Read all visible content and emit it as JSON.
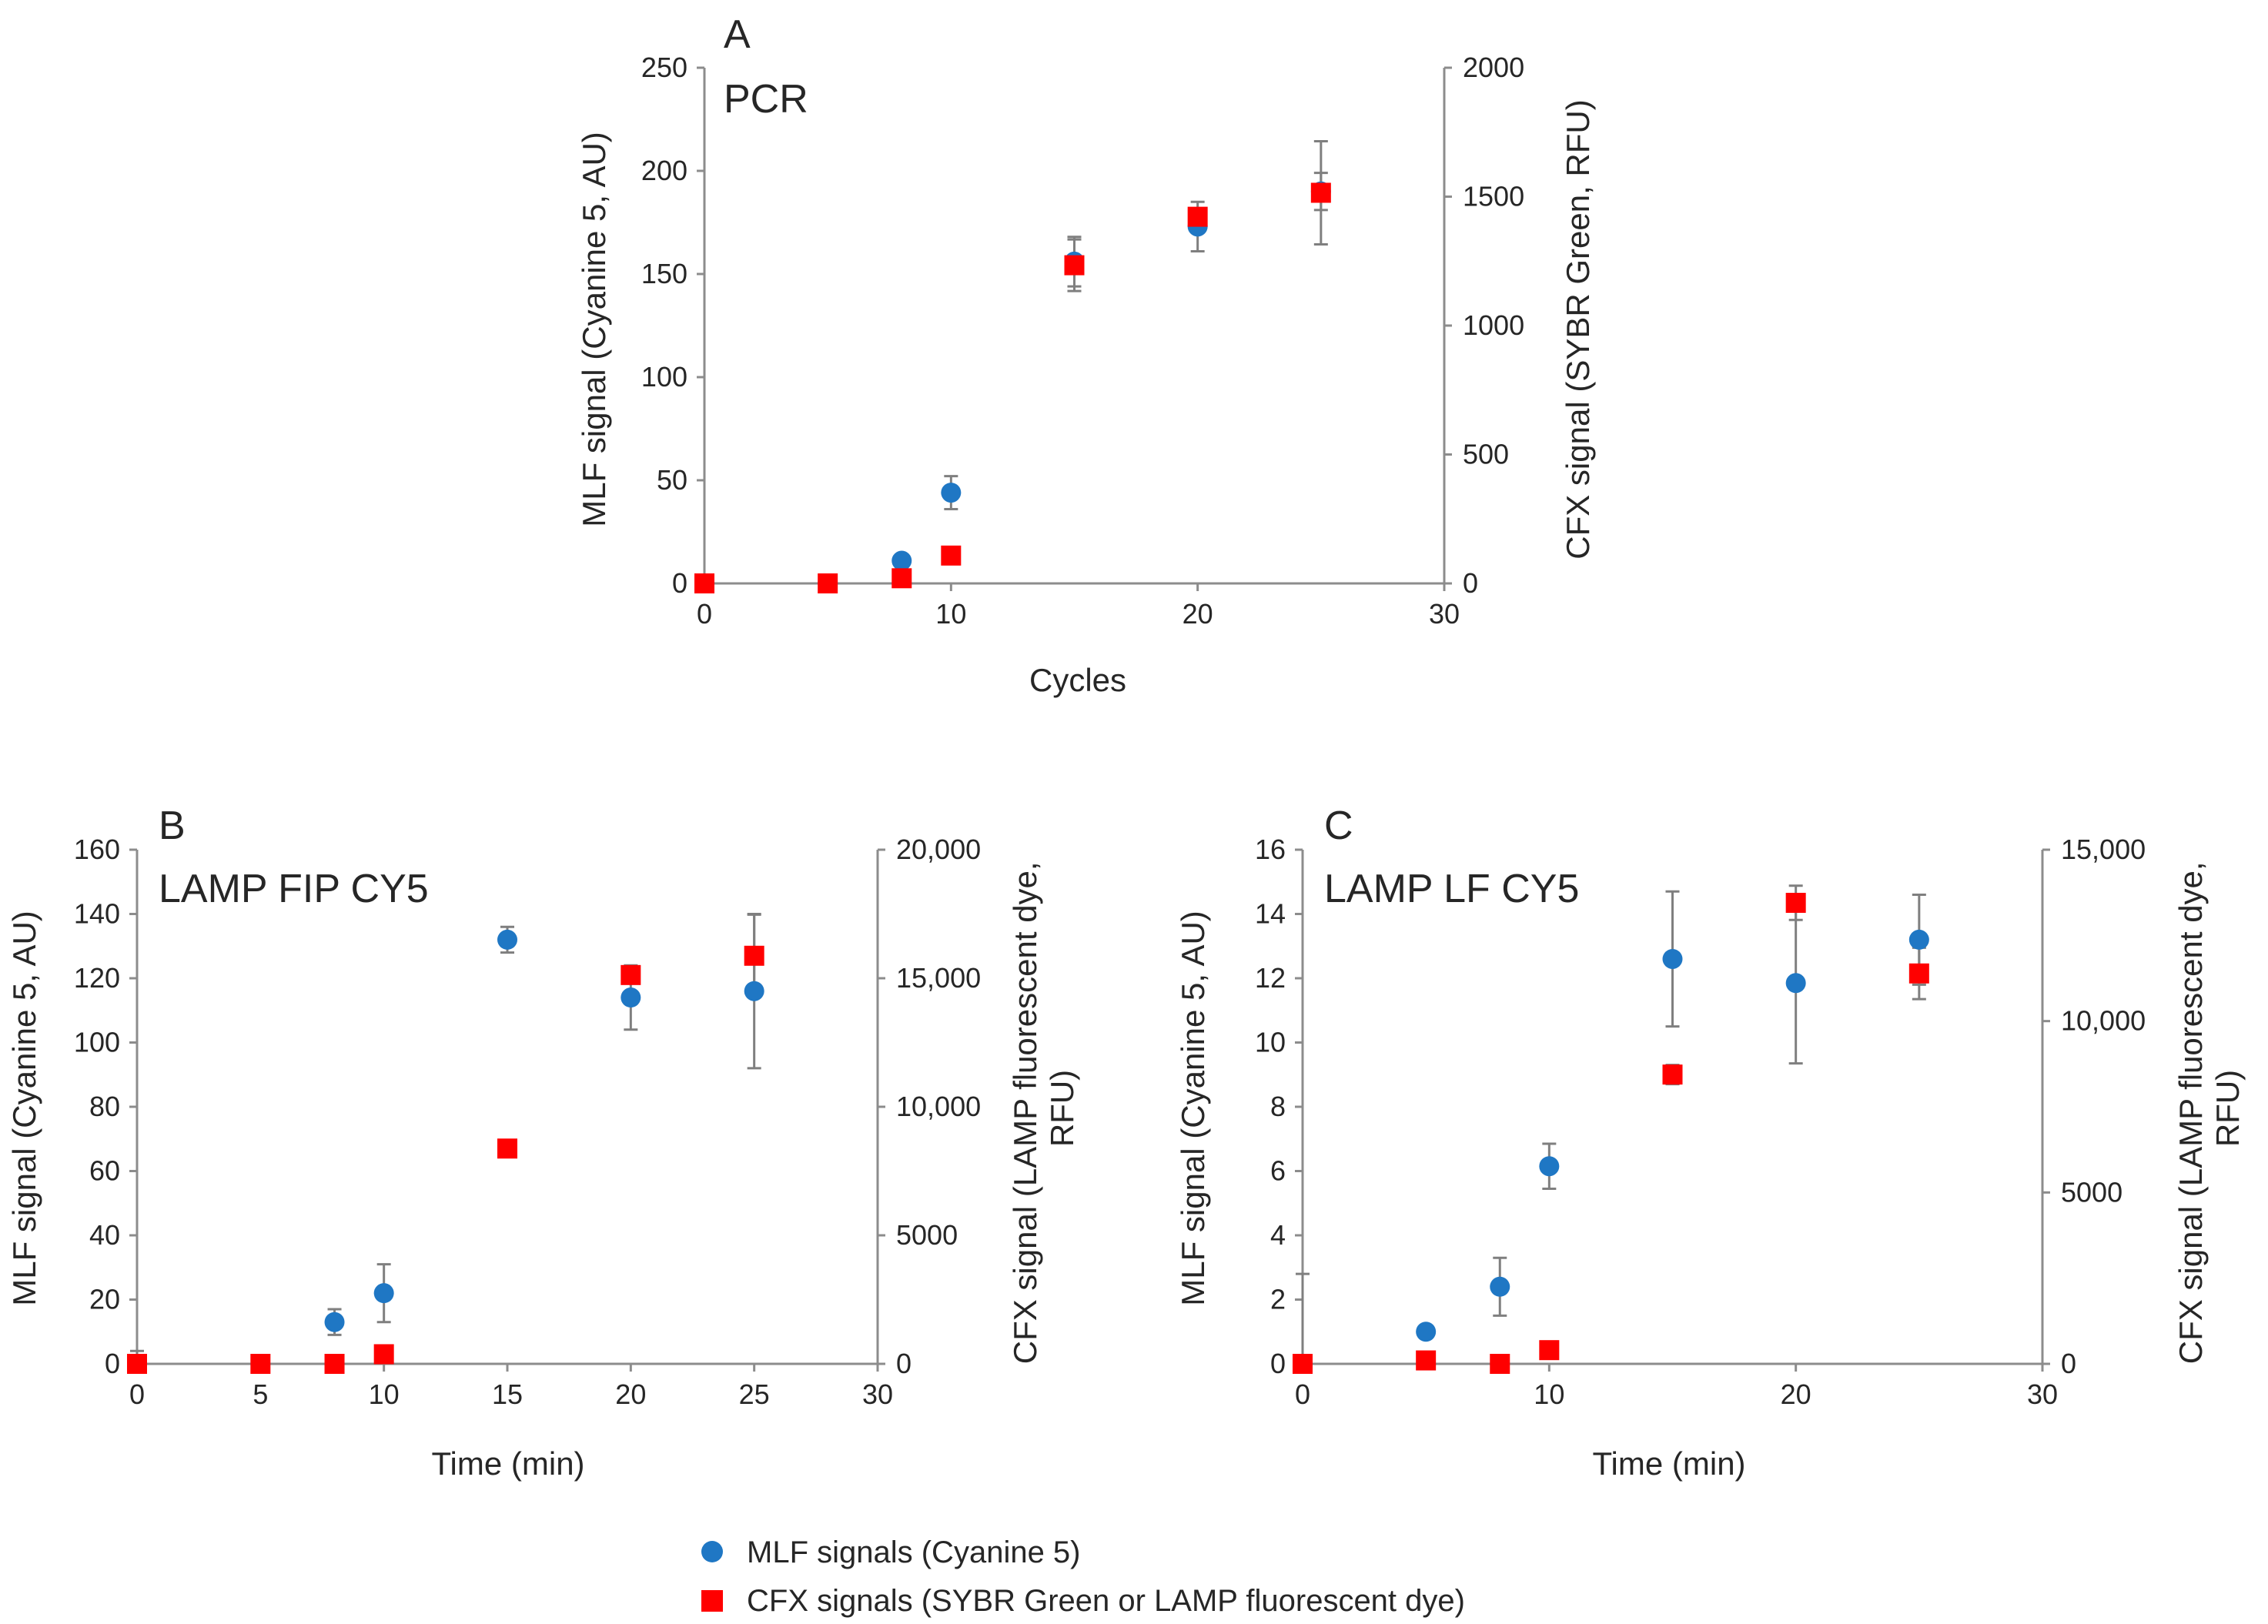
{
  "chart_data": [
    {
      "type": "scatter",
      "panel": "A",
      "title": "PCR",
      "xlabel": "Cycles",
      "ylabel_left": "MLF signal (Cyanine 5, AU)",
      "ylabel_right": "CFX signal (SYBR Green, RFU)",
      "xlim": [
        0,
        30
      ],
      "xticks": [
        0,
        10,
        20,
        30
      ],
      "xtick_labels": [
        "0",
        "10",
        "20",
        "30"
      ],
      "ylim_left": [
        0,
        250
      ],
      "yticks_left": [
        0,
        50,
        100,
        150,
        200,
        250
      ],
      "ytick_labels_left": [
        "0",
        "50",
        "100",
        "150",
        "200",
        "250"
      ],
      "ylim_right": [
        0,
        2000
      ],
      "yticks_right": [
        0,
        500,
        1000,
        1500,
        2000
      ],
      "ytick_labels_right": [
        "0",
        "500",
        "1000",
        "1500",
        "2000"
      ],
      "series": [
        {
          "name": "MLF signals (Cyanine 5)",
          "axis": "left",
          "marker": "circle",
          "x": [
            0,
            5,
            8,
            10,
            15,
            20,
            25
          ],
          "y": [
            0,
            0,
            11,
            44,
            156,
            173,
            190
          ],
          "err": [
            0,
            0,
            2,
            8,
            12,
            12,
            9
          ]
        },
        {
          "name": "CFX signals (SYBR Green or LAMP fluorescent dye)",
          "axis": "right",
          "marker": "square",
          "x": [
            0,
            5,
            8,
            10,
            15,
            20,
            25
          ],
          "y": [
            0,
            0,
            20,
            108,
            1234,
            1422,
            1515
          ],
          "err": [
            0,
            0,
            0,
            0,
            100,
            30,
            200
          ]
        }
      ]
    },
    {
      "type": "scatter",
      "panel": "B",
      "title": "LAMP FIP CY5",
      "xlabel": "Time (min)",
      "ylabel_left": "MLF signal (Cyanine 5, AU)",
      "ylabel_right": "CFX signal (LAMP fluorescent dye, RFU)",
      "xlim": [
        0,
        30
      ],
      "xticks": [
        0,
        5,
        10,
        15,
        20,
        25,
        30
      ],
      "xtick_labels": [
        "0",
        "5",
        "10",
        "15",
        "20",
        "25",
        "30"
      ],
      "ylim_left": [
        0,
        160
      ],
      "yticks_left": [
        0,
        20,
        40,
        60,
        80,
        100,
        120,
        140,
        160
      ],
      "ytick_labels_left": [
        "0",
        "20",
        "40",
        "60",
        "80",
        "100",
        "120",
        "140",
        "160"
      ],
      "ylim_right": [
        0,
        20000
      ],
      "yticks_right": [
        0,
        5000,
        10000,
        15000,
        20000
      ],
      "ytick_labels_right": [
        "0",
        "5000",
        "10,000",
        "15,000",
        "20,000"
      ],
      "series": [
        {
          "name": "MLF signals (Cyanine 5)",
          "axis": "left",
          "marker": "circle",
          "x": [
            0,
            8,
            10,
            15,
            20,
            25
          ],
          "y": [
            0,
            13,
            22,
            132,
            114,
            116
          ],
          "err": [
            4,
            4,
            9,
            4,
            10,
            24
          ]
        },
        {
          "name": "CFX signals (SYBR Green or LAMP fluorescent dye)",
          "axis": "right",
          "marker": "square",
          "x": [
            0,
            5,
            8,
            10,
            15,
            20,
            25
          ],
          "y": [
            0,
            0,
            0,
            375,
            8375,
            15125,
            15875
          ],
          "err": [
            0,
            0,
            0,
            0,
            0,
            300,
            1600
          ]
        }
      ]
    },
    {
      "type": "scatter",
      "panel": "C",
      "title": "LAMP LF CY5",
      "xlabel": "Time (min)",
      "ylabel_left": "MLF signal (Cyanine 5, AU)",
      "ylabel_right": "CFX signal (LAMP fluorescent dye, RFU)",
      "xlim": [
        0,
        30
      ],
      "xticks": [
        0,
        10,
        20,
        30
      ],
      "xtick_labels": [
        "0",
        "10",
        "20",
        "30"
      ],
      "ylim_left": [
        0,
        16
      ],
      "yticks_left": [
        0,
        2,
        4,
        6,
        8,
        10,
        12,
        14,
        16
      ],
      "ytick_labels_left": [
        "0",
        "2",
        "4",
        "6",
        "8",
        "10",
        "12",
        "14",
        "16"
      ],
      "ylim_right": [
        0,
        15000
      ],
      "yticks_right": [
        0,
        5000,
        10000,
        15000
      ],
      "ytick_labels_right": [
        "0",
        "5000",
        "10,000",
        "15,000"
      ],
      "series": [
        {
          "name": "MLF signals (Cyanine 5)",
          "axis": "left",
          "marker": "circle",
          "x": [
            0,
            5,
            8,
            10,
            15,
            20,
            25
          ],
          "y": [
            0,
            1.0,
            2.4,
            6.15,
            12.6,
            11.85,
            13.2
          ],
          "err": [
            2.8,
            0,
            0.9,
            0.7,
            2.1,
            2.5,
            1.4
          ]
        },
        {
          "name": "CFX signals (SYBR Green or LAMP fluorescent dye)",
          "axis": "right",
          "marker": "square",
          "x": [
            0,
            5,
            8,
            10,
            15,
            20,
            25
          ],
          "y": [
            0,
            100,
            0,
            400,
            8440,
            13450,
            11390
          ],
          "err": [
            0,
            0,
            0,
            0,
            280,
            500,
            750
          ]
        }
      ]
    }
  ],
  "legend": {
    "items": [
      {
        "label": "MLF signals (Cyanine 5)",
        "marker": "circle",
        "color": "#1f77c4"
      },
      {
        "label": "CFX signals (SYBR Green or LAMP fluorescent dye)",
        "marker": "square",
        "color": "#ff0000"
      }
    ]
  },
  "colors": {
    "mlf": "#1f77c4",
    "cfx": "#ff0000",
    "axis": "#8c8c8c",
    "error_bar": "#7f7f7f",
    "text": "#262626"
  }
}
